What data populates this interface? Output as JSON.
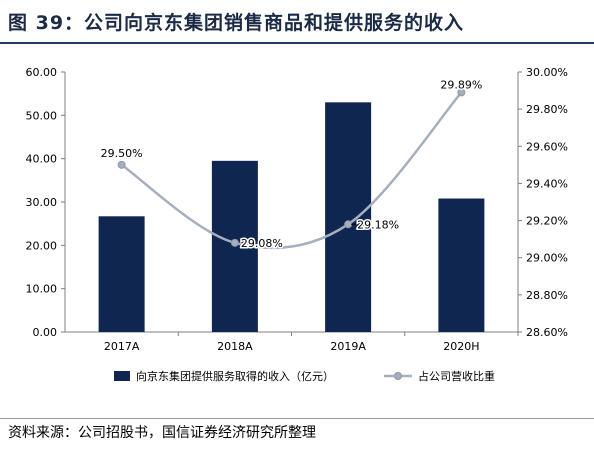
{
  "figure_title": "图 39：公司向京东集团销售商品和提供服务的收入",
  "source": "资料来源：公司招股书，国信证券经济研究所整理",
  "chart_data": {
    "type": "bar",
    "categories": [
      "2017A",
      "2018A",
      "2019A",
      "2020H"
    ],
    "series": [
      {
        "name": "向京东集团提供服务取得的收入（亿元）",
        "type": "bar",
        "axis": "left",
        "color": "#0f2650",
        "values": [
          26.7,
          39.5,
          53.0,
          30.8
        ]
      },
      {
        "name": "占公司营收比重",
        "type": "line",
        "axis": "right",
        "color": "#a6afbd",
        "values": [
          29.5,
          29.08,
          29.18,
          29.89
        ],
        "data_labels": [
          "29.50%",
          "29.08%",
          "29.18%",
          "29.89%"
        ]
      }
    ],
    "y_left": {
      "min": 0,
      "max": 60,
      "step": 10,
      "tick_labels": [
        "0.00",
        "10.00",
        "20.00",
        "30.00",
        "40.00",
        "50.00",
        "60.00"
      ]
    },
    "y_right": {
      "min": 28.6,
      "max": 30.0,
      "step": 0.2,
      "tick_labels": [
        "28.60%",
        "28.80%",
        "29.00%",
        "29.20%",
        "29.40%",
        "29.60%",
        "29.80%",
        "30.00%"
      ]
    },
    "grid": false,
    "legend_position": "bottom"
  }
}
